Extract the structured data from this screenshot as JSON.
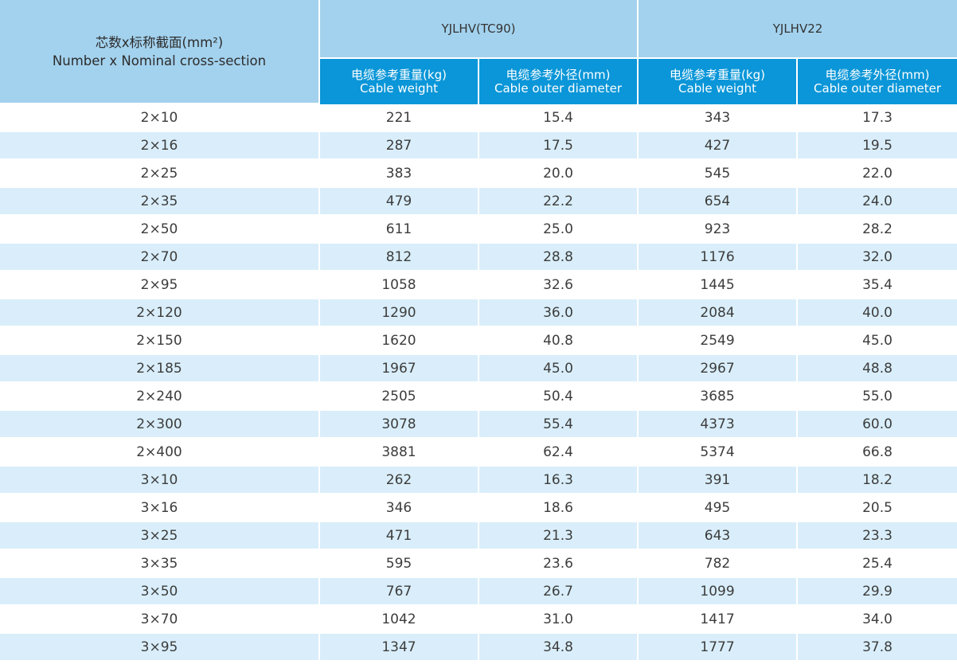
{
  "header": {
    "spec_cn": "芯数x标称截面(mm²)",
    "spec_en": "Number x Nominal cross-section",
    "groups": [
      "YJLHV(TC90)",
      "YJLHV22"
    ],
    "sub": [
      {
        "cn": "电缆参考重量(kg)",
        "en": "Cable weight"
      },
      {
        "cn": "电缆参考外径(mm)",
        "en": "Cable outer diameter"
      },
      {
        "cn": "电缆参考重量(kg)",
        "en": "Cable weight"
      },
      {
        "cn": "电缆参考外径(mm)",
        "en": "Cable outer diameter"
      }
    ]
  },
  "rows": [
    [
      "2×10",
      "221",
      "15.4",
      "343",
      "17.3"
    ],
    [
      "2×16",
      "287",
      "17.5",
      "427",
      "19.5"
    ],
    [
      "2×25",
      "383",
      "20.0",
      "545",
      "22.0"
    ],
    [
      "2×35",
      "479",
      "22.2",
      "654",
      "24.0"
    ],
    [
      "2×50",
      "611",
      "25.0",
      "923",
      "28.2"
    ],
    [
      "2×70",
      "812",
      "28.8",
      "1176",
      "32.0"
    ],
    [
      "2×95",
      "1058",
      "32.6",
      "1445",
      "35.4"
    ],
    [
      "2×120",
      "1290",
      "36.0",
      "2084",
      "40.0"
    ],
    [
      "2×150",
      "1620",
      "40.8",
      "2549",
      "45.0"
    ],
    [
      "2×185",
      "1967",
      "45.0",
      "2967",
      "48.8"
    ],
    [
      "2×240",
      "2505",
      "50.4",
      "3685",
      "55.0"
    ],
    [
      "2×300",
      "3078",
      "55.4",
      "4373",
      "60.0"
    ],
    [
      "2×400",
      "3881",
      "62.4",
      "5374",
      "66.8"
    ],
    [
      "3×10",
      "262",
      "16.3",
      "391",
      "18.2"
    ],
    [
      "3×16",
      "346",
      "18.6",
      "495",
      "20.5"
    ],
    [
      "3×25",
      "471",
      "21.3",
      "643",
      "23.3"
    ],
    [
      "3×35",
      "595",
      "23.6",
      "782",
      "25.4"
    ],
    [
      "3×50",
      "767",
      "26.7",
      "1099",
      "29.9"
    ],
    [
      "3×70",
      "1042",
      "31.0",
      "1417",
      "34.0"
    ],
    [
      "3×95",
      "1347",
      "34.8",
      "1777",
      "37.8"
    ]
  ]
}
